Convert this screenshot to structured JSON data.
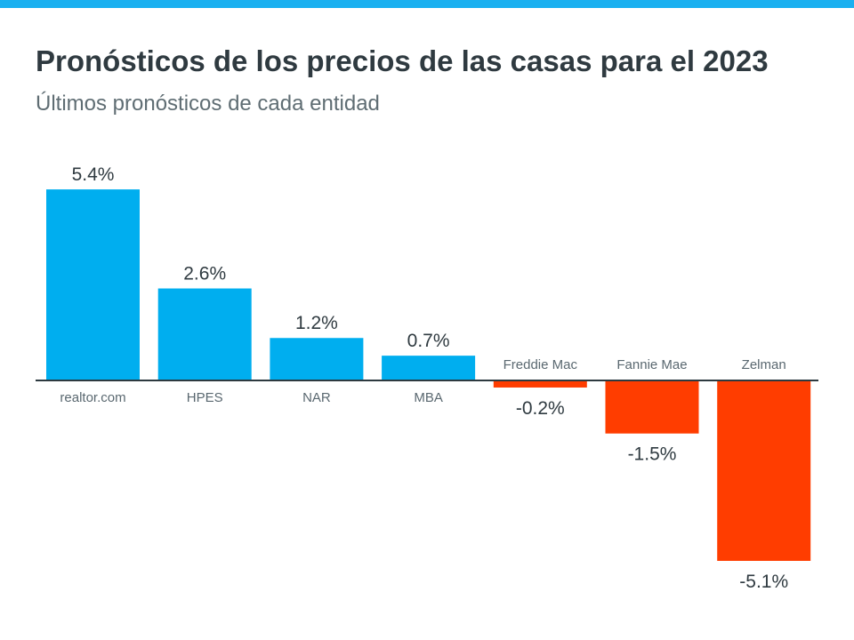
{
  "header": {
    "title": "Pronósticos de los precios de las casas para el 2023",
    "subtitle": "Últimos pronósticos de cada entidad"
  },
  "colors": {
    "accent": "#1ab0f0",
    "positive": "#00aeef",
    "negative": "#ff3d00",
    "axis": "#2d3a40"
  },
  "chart_data": {
    "type": "bar",
    "title": "Pronósticos de los precios de las casas para el 2023",
    "subtitle": "Últimos pronósticos de cada entidad",
    "categories": [
      "realtor.com",
      "HPES",
      "NAR",
      "MBA",
      "Freddie Mac",
      "Fannie Mae",
      "Zelman"
    ],
    "values": [
      5.4,
      2.6,
      1.2,
      0.7,
      -0.2,
      -1.5,
      -5.1
    ],
    "value_labels": [
      "5.4%",
      "2.6%",
      "1.2%",
      "0.7%",
      "-0.2%",
      "-1.5%",
      "-5.1%"
    ],
    "unit": "%",
    "ylim": [
      -5.5,
      5.8
    ],
    "grid": false,
    "legend": "none"
  }
}
